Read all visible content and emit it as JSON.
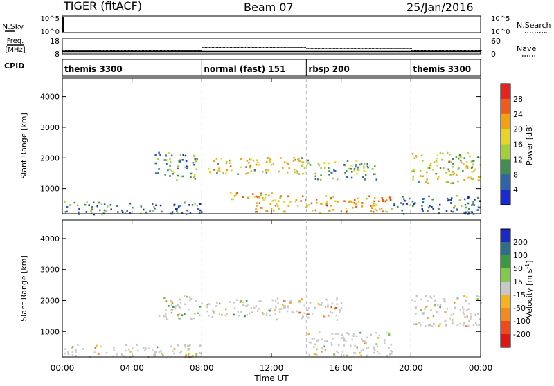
{
  "header": {
    "title": "TIGER (fitACF)",
    "beam": "Beam 07",
    "date": "25/Jan/2016"
  },
  "top_panels": {
    "nsky_label": "N.Sky",
    "nsky_ticks": [
      "10^5",
      "10^0"
    ],
    "nsearch_label": "N.Search",
    "freq_label_1": "Freq.",
    "freq_label_2": "[MHz]",
    "freq_ticks": [
      "18",
      "8"
    ],
    "nave_ticks": [
      "60",
      "0"
    ],
    "nave_label": "Nave",
    "cpid_label": "CPID"
  },
  "cpid_modes": [
    {
      "label": "themis 3300",
      "start_hour": 0
    },
    {
      "label": "normal (fast) 151",
      "start_hour": 8
    },
    {
      "label": "rbsp 200",
      "start_hour": 14
    },
    {
      "label": "themis 3300",
      "start_hour": 20
    }
  ],
  "power_panel": {
    "ylabel": "Slant Range [km]",
    "yticks": [
      "4000",
      "3000",
      "2000",
      "1000"
    ],
    "colorbar_label": "Power [dB]",
    "colorbar_ticks": [
      "28",
      "24",
      "20",
      "16",
      "12",
      "8",
      "4"
    ],
    "colors": [
      "#e8221e",
      "#f05a1a",
      "#f4a013",
      "#e7d423",
      "#a6cd3a",
      "#3e8f50",
      "#2e64a8",
      "#1829d8"
    ]
  },
  "velocity_panel": {
    "ylabel": "Slant Range [km]",
    "yticks": [
      "4000",
      "3000",
      "2000",
      "1000"
    ],
    "colorbar_label_1": "Velocity [m s",
    "colorbar_sup": "-1",
    "colorbar_label_2": "]",
    "colorbar_ticks": [
      "200",
      "100",
      "50",
      "15",
      "-15",
      "-50",
      "-100",
      "-200"
    ],
    "colors": [
      "#1c28c8",
      "#2d6f8a",
      "#3b9a3f",
      "#82c94a",
      "#c8c8c8",
      "#f6b31c",
      "#f28a1c",
      "#f04a1a",
      "#e01616"
    ]
  },
  "x_axis": {
    "ticks": [
      "00:00",
      "04:00",
      "08:00",
      "12:00",
      "16:00",
      "20:00",
      "00:00"
    ],
    "label": "Time UT"
  },
  "chart_data": {
    "type": "heatmap",
    "title": "TIGER (fitACF)",
    "subtitle": "Beam 07",
    "date": "25/Jan/2016",
    "xlabel": "Time UT",
    "ylabel": "Slant Range [km]",
    "xlim": [
      0,
      24
    ],
    "ylim": [
      180,
      4600
    ],
    "grid": false,
    "cpid_boundaries_hours": [
      8,
      14,
      20
    ],
    "freq_MHz": [
      {
        "from_hour": 0,
        "to_hour": 8,
        "value": 10.5
      },
      {
        "from_hour": 8,
        "to_hour": 14,
        "value": 12.5
      },
      {
        "from_hour": 14,
        "to_hour": 20,
        "value": 12.0
      },
      {
        "from_hour": 20,
        "to_hour": 24,
        "value": 10.5
      }
    ],
    "power_regions": [
      {
        "t0": 5.3,
        "t1": 7.8,
        "r0": 1300,
        "r1": 2200,
        "level": 10
      },
      {
        "t0": 8.2,
        "t1": 14.0,
        "r0": 1500,
        "r1": 2050,
        "level": 18
      },
      {
        "t0": 14.0,
        "t1": 18.0,
        "r0": 1300,
        "r1": 1950,
        "level": 12
      },
      {
        "t0": 9.5,
        "t1": 12.5,
        "r0": 600,
        "r1": 900,
        "level": 20
      },
      {
        "t0": 11.0,
        "t1": 19.0,
        "r0": 250,
        "r1": 800,
        "level": 22
      },
      {
        "t0": 20.0,
        "t1": 24.0,
        "r0": 1200,
        "r1": 2200,
        "level": 16
      },
      {
        "t0": 0.0,
        "t1": 8.0,
        "r0": 180,
        "r1": 600,
        "level": 8
      },
      {
        "t0": 19.0,
        "t1": 24.0,
        "r0": 180,
        "r1": 800,
        "level": 6
      }
    ],
    "velocity_regions": [
      {
        "t0": 5.5,
        "t1": 8.0,
        "r0": 1400,
        "r1": 2200,
        "vel": 0
      },
      {
        "t0": 8.2,
        "t1": 12.0,
        "r0": 1500,
        "r1": 2050,
        "vel": 0
      },
      {
        "t0": 12.0,
        "t1": 16.0,
        "r0": 1400,
        "r1": 2100,
        "vel": -60
      },
      {
        "t0": 14.0,
        "t1": 19.0,
        "r0": 250,
        "r1": 1000,
        "vel": 0
      },
      {
        "t0": 20.0,
        "t1": 24.0,
        "r0": 1200,
        "r1": 2200,
        "vel": 0
      },
      {
        "t0": 0.0,
        "t1": 8.0,
        "r0": 180,
        "r1": 600,
        "vel": -30
      }
    ]
  }
}
